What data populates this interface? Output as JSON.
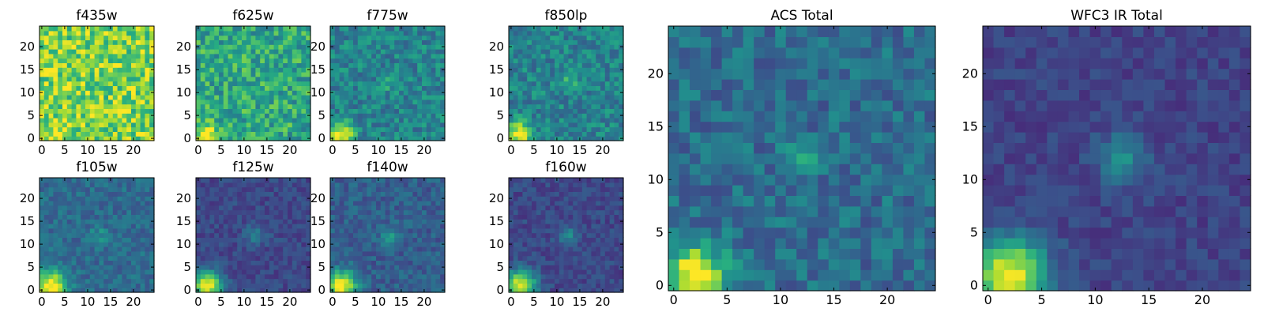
{
  "chart_data": {
    "type": "heatmap",
    "colormap": "viridis",
    "panels": [
      {
        "title": "f435w",
        "xlim": [
          0,
          24
        ],
        "ylim": [
          0,
          24
        ],
        "xticks": [
          0,
          5,
          10,
          15,
          20
        ],
        "yticks": [
          0,
          5,
          10,
          15,
          20
        ],
        "background_level": 0.8,
        "noise": 0.22,
        "sources": [
          {
            "x": 2,
            "y": 1,
            "peak": 0.1,
            "sigma": 2.0
          }
        ]
      },
      {
        "title": "f625w",
        "xlim": [
          0,
          24
        ],
        "ylim": [
          0,
          24
        ],
        "xticks": [
          0,
          5,
          10,
          15,
          20
        ],
        "yticks": [
          0,
          5,
          10,
          15,
          20
        ],
        "background_level": 0.6,
        "noise": 0.2,
        "sources": [
          {
            "x": 2,
            "y": 1,
            "peak": 0.5,
            "sigma": 1.6
          }
        ]
      },
      {
        "title": "f775w",
        "xlim": [
          0,
          24
        ],
        "ylim": [
          0,
          24
        ],
        "xticks": [
          0,
          5,
          10,
          15,
          20
        ],
        "yticks": [
          0,
          5,
          10,
          15,
          20
        ],
        "background_level": 0.45,
        "noise": 0.15,
        "sources": [
          {
            "x": 2,
            "y": 1,
            "peak": 0.6,
            "sigma": 1.8
          },
          {
            "x": 12.5,
            "y": 12,
            "peak": 0.15,
            "sigma": 1.2
          }
        ]
      },
      {
        "title": "f850lp",
        "xlim": [
          0,
          24
        ],
        "ylim": [
          0,
          24
        ],
        "xticks": [
          0,
          5,
          10,
          15,
          20
        ],
        "yticks": [
          0,
          5,
          10,
          15,
          20
        ],
        "background_level": 0.45,
        "noise": 0.15,
        "sources": [
          {
            "x": 2,
            "y": 1,
            "peak": 0.6,
            "sigma": 1.8
          },
          {
            "x": 12.5,
            "y": 12,
            "peak": 0.2,
            "sigma": 1.2
          }
        ]
      },
      {
        "title": "f105w",
        "xlim": [
          0,
          24
        ],
        "ylim": [
          0,
          24
        ],
        "xticks": [
          0,
          5,
          10,
          15,
          20
        ],
        "yticks": [
          0,
          5,
          10,
          15,
          20
        ],
        "background_level": 0.35,
        "noise": 0.1,
        "sources": [
          {
            "x": 2,
            "y": 1,
            "peak": 0.7,
            "sigma": 2.3
          },
          {
            "x": 12.5,
            "y": 12,
            "peak": 0.15,
            "sigma": 1.4
          }
        ]
      },
      {
        "title": "f125w",
        "xlim": [
          0,
          24
        ],
        "ylim": [
          0,
          24
        ],
        "xticks": [
          0,
          5,
          10,
          15,
          20
        ],
        "yticks": [
          0,
          5,
          10,
          15,
          20
        ],
        "background_level": 0.22,
        "noise": 0.08,
        "sources": [
          {
            "x": 2,
            "y": 1,
            "peak": 0.75,
            "sigma": 2.3
          },
          {
            "x": 12.5,
            "y": 12,
            "peak": 0.25,
            "sigma": 1.5
          }
        ]
      },
      {
        "title": "f140w",
        "xlim": [
          0,
          24
        ],
        "ylim": [
          0,
          24
        ],
        "xticks": [
          0,
          5,
          10,
          15,
          20
        ],
        "yticks": [
          0,
          5,
          10,
          15,
          20
        ],
        "background_level": 0.3,
        "noise": 0.1,
        "sources": [
          {
            "x": 2,
            "y": 1,
            "peak": 0.7,
            "sigma": 2.3
          },
          {
            "x": 12.5,
            "y": 12,
            "peak": 0.2,
            "sigma": 1.5
          }
        ]
      },
      {
        "title": "f160w",
        "xlim": [
          0,
          24
        ],
        "ylim": [
          0,
          24
        ],
        "xticks": [
          0,
          5,
          10,
          15,
          20
        ],
        "yticks": [
          0,
          5,
          10,
          15,
          20
        ],
        "background_level": 0.22,
        "noise": 0.08,
        "sources": [
          {
            "x": 2,
            "y": 1,
            "peak": 0.75,
            "sigma": 2.4
          },
          {
            "x": 12.5,
            "y": 12,
            "peak": 0.25,
            "sigma": 1.5
          }
        ]
      },
      {
        "title": "ACS Total",
        "xlim": [
          0,
          24
        ],
        "ylim": [
          0,
          24
        ],
        "xticks": [
          0,
          5,
          10,
          15,
          20
        ],
        "yticks": [
          0,
          5,
          10,
          15,
          20
        ],
        "background_level": 0.36,
        "noise": 0.13,
        "sources": [
          {
            "x": 2,
            "y": 1,
            "peak": 0.7,
            "sigma": 1.9
          },
          {
            "x": 12,
            "y": 12,
            "peak": 0.25,
            "sigma": 1.0
          }
        ]
      },
      {
        "title": "WFC3 IR Total",
        "xlim": [
          0,
          24
        ],
        "ylim": [
          0,
          24
        ],
        "xticks": [
          0,
          5,
          10,
          15,
          20
        ],
        "yticks": [
          0,
          5,
          10,
          15,
          20
        ],
        "background_level": 0.2,
        "noise": 0.07,
        "sources": [
          {
            "x": 2,
            "y": 1,
            "peak": 0.8,
            "sigma": 2.4
          },
          {
            "x": 12.5,
            "y": 12,
            "peak": 0.3,
            "sigma": 1.6
          }
        ]
      }
    ]
  }
}
